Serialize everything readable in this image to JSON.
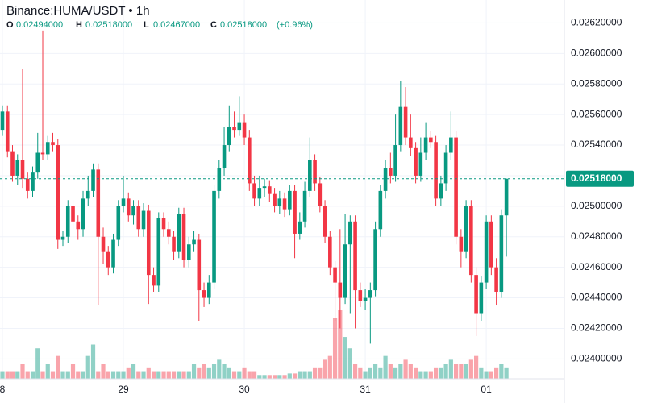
{
  "chart_data": {
    "type": "candlestick",
    "title": "Binance:HUMA/USDT • 1h",
    "ohlc_header": {
      "labels": [
        "O",
        "H",
        "L",
        "C"
      ],
      "values": [
        0.02494,
        0.02518,
        0.02467,
        0.02518
      ],
      "value_labels": [
        "0.02494000",
        "0.02518000",
        "0.02467000",
        "0.02518000"
      ],
      "change": 0.96,
      "change_label": "(+0.96%)"
    },
    "last_price": {
      "value": 0.02518,
      "label": "0.02518000"
    },
    "up_color": "#089981",
    "down_color": "#f23645",
    "grid": true,
    "xlim": [
      -0.48,
      111.5
    ],
    "xticks": [
      {
        "value": 0,
        "label": "8"
      },
      {
        "value": 24,
        "label": "29"
      },
      {
        "value": 48,
        "label": "30"
      },
      {
        "value": 72,
        "label": "31"
      },
      {
        "value": 96,
        "label": "01"
      }
    ],
    "ylim": [
      0.02387,
      0.02635
    ],
    "yticks": [
      {
        "value": 0.024,
        "label": "0.02400000"
      },
      {
        "value": 0.0242,
        "label": "0.02420000"
      },
      {
        "value": 0.0244,
        "label": "0.02440000"
      },
      {
        "value": 0.0246,
        "label": "0.02460000"
      },
      {
        "value": 0.0248,
        "label": "0.02480000"
      },
      {
        "value": 0.025,
        "label": "0.02500000"
      },
      {
        "value": 0.0252,
        "label": "0.02520000"
      },
      {
        "value": 0.0254,
        "label": "0.02540000"
      },
      {
        "value": 0.0256,
        "label": "0.02560000"
      },
      {
        "value": 0.0258,
        "label": "0.02580000"
      },
      {
        "value": 0.026,
        "label": "0.02600000"
      },
      {
        "value": 0.0262,
        "label": "0.02620000"
      }
    ],
    "ohlc": [
      [
        0.0255,
        0.02566,
        0.02546,
        0.02562
      ],
      [
        0.02562,
        0.02566,
        0.02532,
        0.02536
      ],
      [
        0.02536,
        0.0254,
        0.02516,
        0.0252
      ],
      [
        0.0252,
        0.02534,
        0.02514,
        0.0253
      ],
      [
        0.0253,
        0.0259,
        0.02512,
        0.02518
      ],
      [
        0.02518,
        0.02522,
        0.02505,
        0.0251
      ],
      [
        0.0251,
        0.02526,
        0.02506,
        0.02522
      ],
      [
        0.02522,
        0.02548,
        0.02518,
        0.02535
      ],
      [
        0.02535,
        0.02615,
        0.0253,
        0.02534
      ],
      [
        0.02534,
        0.02546,
        0.0253,
        0.02542
      ],
      [
        0.02542,
        0.02548,
        0.02536,
        0.0254
      ],
      [
        0.0254,
        0.02544,
        0.02472,
        0.02478
      ],
      [
        0.02478,
        0.02484,
        0.02474,
        0.0248
      ],
      [
        0.0248,
        0.02504,
        0.02476,
        0.025
      ],
      [
        0.025,
        0.02504,
        0.02485,
        0.0249
      ],
      [
        0.0249,
        0.02494,
        0.02478,
        0.02485
      ],
      [
        0.02485,
        0.0251,
        0.0248,
        0.02505
      ],
      [
        0.02505,
        0.0252,
        0.025,
        0.0251
      ],
      [
        0.0251,
        0.02528,
        0.02506,
        0.02524
      ],
      [
        0.02524,
        0.02528,
        0.02435,
        0.0248
      ],
      [
        0.0248,
        0.02486,
        0.02462,
        0.0247
      ],
      [
        0.0247,
        0.02474,
        0.02455,
        0.0246
      ],
      [
        0.0246,
        0.02482,
        0.02456,
        0.02478
      ],
      [
        0.02478,
        0.02504,
        0.02474,
        0.025
      ],
      [
        0.025,
        0.0252,
        0.02496,
        0.02505
      ],
      [
        0.02505,
        0.02509,
        0.0249,
        0.02494
      ],
      [
        0.02494,
        0.02504,
        0.02488,
        0.025
      ],
      [
        0.025,
        0.02504,
        0.0248,
        0.02485
      ],
      [
        0.02485,
        0.02502,
        0.0248,
        0.02497
      ],
      [
        0.02497,
        0.02501,
        0.02436,
        0.02455
      ],
      [
        0.02455,
        0.0246,
        0.02444,
        0.02448
      ],
      [
        0.02448,
        0.02496,
        0.02444,
        0.02492
      ],
      [
        0.02492,
        0.02496,
        0.0248,
        0.02485
      ],
      [
        0.02485,
        0.0249,
        0.02475,
        0.0248
      ],
      [
        0.0248,
        0.02484,
        0.02465,
        0.0247
      ],
      [
        0.0247,
        0.02499,
        0.02466,
        0.02495
      ],
      [
        0.02495,
        0.02499,
        0.0246,
        0.02465
      ],
      [
        0.02465,
        0.0248,
        0.0246,
        0.02475
      ],
      [
        0.02475,
        0.02484,
        0.0247,
        0.02478
      ],
      [
        0.02478,
        0.02482,
        0.02425,
        0.02445
      ],
      [
        0.02445,
        0.0245,
        0.02434,
        0.0244
      ],
      [
        0.0244,
        0.02455,
        0.02436,
        0.0245
      ],
      [
        0.0245,
        0.02514,
        0.02446,
        0.0251
      ],
      [
        0.0251,
        0.0253,
        0.02505,
        0.02525
      ],
      [
        0.02525,
        0.02552,
        0.0252,
        0.0254
      ],
      [
        0.0254,
        0.02566,
        0.02536,
        0.02552
      ],
      [
        0.02552,
        0.02562,
        0.02545,
        0.0255
      ],
      [
        0.0255,
        0.02572,
        0.02546,
        0.02555
      ],
      [
        0.02555,
        0.0256,
        0.0254,
        0.02545
      ],
      [
        0.02545,
        0.0255,
        0.0251,
        0.02515
      ],
      [
        0.02515,
        0.0252,
        0.025,
        0.02505
      ],
      [
        0.02505,
        0.0252,
        0.025,
        0.02512
      ],
      [
        0.02512,
        0.02518,
        0.02506,
        0.02513
      ],
      [
        0.02513,
        0.02517,
        0.02503,
        0.02508
      ],
      [
        0.02508,
        0.02512,
        0.02496,
        0.025
      ],
      [
        0.025,
        0.0251,
        0.02495,
        0.02505
      ],
      [
        0.02505,
        0.02509,
        0.02493,
        0.02498
      ],
      [
        0.02498,
        0.02514,
        0.02494,
        0.0251
      ],
      [
        0.0251,
        0.02514,
        0.02466,
        0.02482
      ],
      [
        0.02482,
        0.02496,
        0.02478,
        0.0249
      ],
      [
        0.0249,
        0.02516,
        0.02486,
        0.0251
      ],
      [
        0.0251,
        0.02545,
        0.02506,
        0.0253
      ],
      [
        0.0253,
        0.02534,
        0.0251,
        0.02515
      ],
      [
        0.02515,
        0.02519,
        0.02496,
        0.025
      ],
      [
        0.025,
        0.02504,
        0.02476,
        0.0248
      ],
      [
        0.0248,
        0.02484,
        0.02455,
        0.0246
      ],
      [
        0.0246,
        0.02464,
        0.02425,
        0.0245
      ],
      [
        0.0245,
        0.02485,
        0.0242,
        0.0244
      ],
      [
        0.0244,
        0.02495,
        0.02436,
        0.02475
      ],
      [
        0.02475,
        0.02494,
        0.0243,
        0.0249
      ],
      [
        0.0249,
        0.02494,
        0.0242,
        0.02445
      ],
      [
        0.02445,
        0.0245,
        0.02434,
        0.02438
      ],
      [
        0.02438,
        0.02446,
        0.02432,
        0.0244
      ],
      [
        0.0244,
        0.0245,
        0.0241,
        0.02445
      ],
      [
        0.02445,
        0.0249,
        0.02441,
        0.02485
      ],
      [
        0.02485,
        0.02514,
        0.0248,
        0.0251
      ],
      [
        0.0251,
        0.0253,
        0.02505,
        0.02525
      ],
      [
        0.02525,
        0.02535,
        0.02515,
        0.0252
      ],
      [
        0.0252,
        0.0256,
        0.02516,
        0.0254
      ],
      [
        0.0254,
        0.02582,
        0.02536,
        0.02565
      ],
      [
        0.02565,
        0.02578,
        0.0254,
        0.02545
      ],
      [
        0.02545,
        0.0256,
        0.02533,
        0.02538
      ],
      [
        0.02538,
        0.02542,
        0.02515,
        0.0252
      ],
      [
        0.0252,
        0.02545,
        0.02516,
        0.02535
      ],
      [
        0.02535,
        0.02555,
        0.0253,
        0.02545
      ],
      [
        0.02545,
        0.02549,
        0.02538,
        0.02542
      ],
      [
        0.02542,
        0.02546,
        0.025,
        0.02505
      ],
      [
        0.02505,
        0.0252,
        0.025,
        0.02515
      ],
      [
        0.02515,
        0.0254,
        0.0251,
        0.02535
      ],
      [
        0.02535,
        0.02562,
        0.0253,
        0.02545
      ],
      [
        0.02545,
        0.02549,
        0.02475,
        0.0248
      ],
      [
        0.0248,
        0.02485,
        0.0246,
        0.0247
      ],
      [
        0.0247,
        0.02504,
        0.02466,
        0.025
      ],
      [
        0.025,
        0.02504,
        0.0245,
        0.02455
      ],
      [
        0.02455,
        0.0246,
        0.02415,
        0.0243
      ],
      [
        0.0243,
        0.02454,
        0.02425,
        0.0245
      ],
      [
        0.0245,
        0.02494,
        0.02446,
        0.0249
      ],
      [
        0.0249,
        0.02494,
        0.02455,
        0.0246
      ],
      [
        0.0246,
        0.02466,
        0.02435,
        0.02444
      ],
      [
        0.02444,
        0.02498,
        0.0244,
        0.02494
      ],
      [
        0.02494,
        0.02518,
        0.02467,
        0.02518
      ]
    ],
    "volume": [
      1,
      1,
      1,
      1,
      2,
      1,
      1,
      4,
      1,
      2,
      1,
      3,
      1,
      1,
      2,
      1,
      1,
      3,
      4.5,
      1,
      2,
      1,
      1,
      1,
      1,
      1.5,
      2,
      1,
      1,
      1.5,
      1,
      1,
      1,
      1,
      1,
      1,
      1,
      1,
      2,
      1.5,
      2,
      1.5,
      2,
      2.5,
      2,
      1.5,
      1,
      1,
      1.5,
      1,
      1,
      0.5,
      0.5,
      0.5,
      0.5,
      0.5,
      0.5,
      0.7,
      0.7,
      1,
      1,
      1,
      1.5,
      1.5,
      2.5,
      3,
      8,
      9,
      5.5,
      4,
      2,
      1.5,
      1,
      1.5,
      2,
      1.5,
      3,
      2,
      1.5,
      2,
      2.5,
      2,
      1.5,
      1,
      1,
      1,
      1.5,
      1.5,
      2,
      2.5,
      2,
      2,
      2,
      2.5,
      3,
      1.5,
      1,
      1,
      1.5,
      2,
      1.5
    ]
  }
}
